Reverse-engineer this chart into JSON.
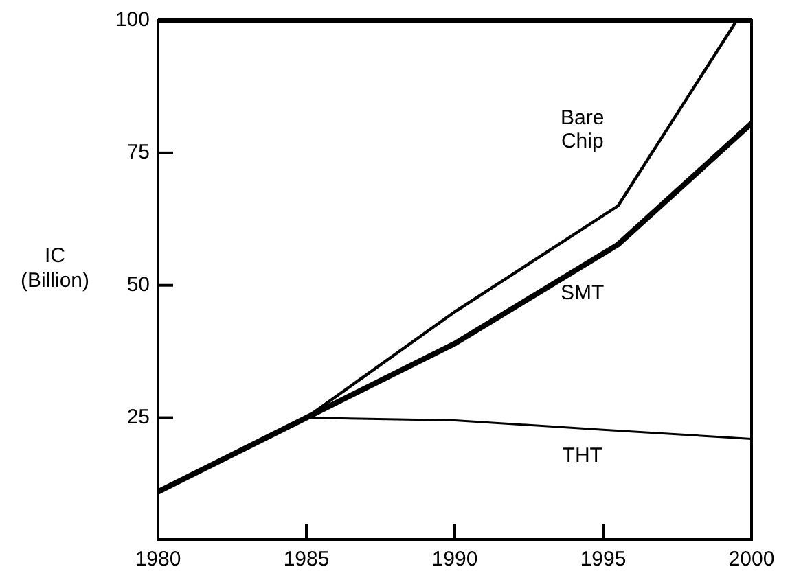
{
  "chart_data": {
    "type": "line",
    "ylabel": "IC\n(Billion)",
    "xlim": [
      1980,
      2000
    ],
    "xticks": [
      1980,
      1985,
      1990,
      1995,
      2000
    ],
    "ylim": [
      2,
      100
    ],
    "yticks": [
      25,
      50,
      75,
      100
    ],
    "grid": false,
    "legend": false,
    "marker": "none",
    "line_style": "solid",
    "series": [
      {
        "name": "Bare\nChip",
        "color": "#000000",
        "x": [
          1980,
          1985,
          1990,
          1995.5,
          1999.5
        ],
        "values": [
          11,
          25,
          45,
          65,
          100
        ]
      },
      {
        "name": "SMT",
        "color": "#000000",
        "x": [
          1980,
          1985,
          1990,
          1995.5,
          2000
        ],
        "values": [
          11,
          25,
          39,
          57.7,
          80.6
        ]
      },
      {
        "name": "THT",
        "color": "#000000",
        "x": [
          1985,
          1990,
          1995,
          2000
        ],
        "values": [
          25,
          24.5,
          22.7,
          21
        ]
      }
    ]
  }
}
